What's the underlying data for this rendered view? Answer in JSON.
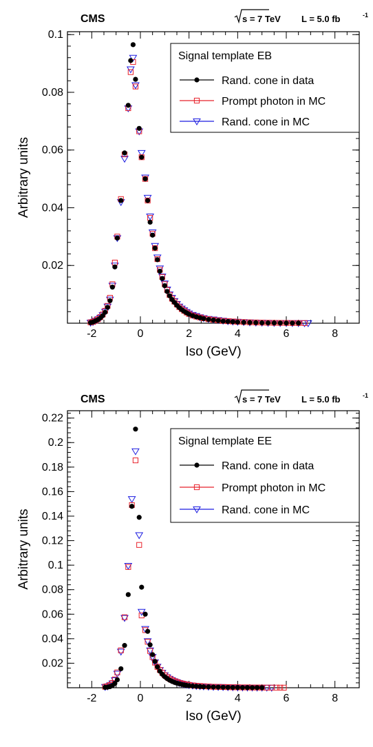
{
  "chart_data": [
    {
      "type": "scatter",
      "experiment": "CMS",
      "energy_label": "s = 7 TeV",
      "lumi_label": "L = 5.0 fb",
      "lumi_exponent": "-1",
      "xlabel": "Iso (GeV)",
      "ylabel": "Arbitrary units",
      "xlim": [
        -3,
        9
      ],
      "ylim": [
        0,
        0.101
      ],
      "x_ticks": [
        -2,
        0,
        2,
        4,
        6,
        8
      ],
      "y_ticks": [
        0.02,
        0.04,
        0.06,
        0.08,
        0.1
      ],
      "y_tick_labels": [
        "0.02",
        "0.04",
        "0.06",
        "0.08",
        "0.1"
      ],
      "legend_title": "Signal template EB",
      "legend_position": "top-right",
      "colors": {
        "data": "#000000",
        "prompt_mc": "#e8202a",
        "randcone_mc": "#1a1ae0"
      },
      "series": [
        {
          "name": "Rand. cone in data",
          "marker": "circle",
          "x": [
            -2.05,
            -1.95,
            -1.85,
            -1.75,
            -1.65,
            -1.55,
            -1.45,
            -1.35,
            -1.25,
            -1.15,
            -1.05,
            -0.95,
            -0.8,
            -0.65,
            -0.5,
            -0.4,
            -0.3,
            -0.2,
            -0.05,
            0.05,
            0.2,
            0.3,
            0.4,
            0.5,
            0.6,
            0.7,
            0.8,
            0.9,
            1.0,
            1.1,
            1.2,
            1.3,
            1.4,
            1.5,
            1.6,
            1.7,
            1.8,
            1.9,
            2.0,
            2.15,
            2.3,
            2.45,
            2.6,
            2.8,
            3.0,
            3.2,
            3.4,
            3.6,
            3.8,
            4.0,
            4.25,
            4.5,
            4.75,
            5.0,
            5.25,
            5.5,
            5.75,
            6.0,
            6.25,
            6.5
          ],
          "y": [
            0.0002,
            0.0004,
            0.0008,
            0.0012,
            0.0018,
            0.0026,
            0.0038,
            0.0055,
            0.0078,
            0.0125,
            0.0195,
            0.0295,
            0.0425,
            0.059,
            0.0755,
            0.091,
            0.0965,
            0.0845,
            0.0675,
            0.0575,
            0.05,
            0.0425,
            0.035,
            0.0305,
            0.026,
            0.022,
            0.018,
            0.0155,
            0.013,
            0.011,
            0.0095,
            0.0082,
            0.0072,
            0.0062,
            0.0054,
            0.0047,
            0.0041,
            0.0036,
            0.0031,
            0.0026,
            0.0022,
            0.0019,
            0.0016,
            0.0013,
            0.0011,
            0.0009,
            0.0007,
            0.0006,
            0.0005,
            0.0004,
            0.0003,
            0.00025,
            0.0002,
            0.00015,
            0.00012,
            0.0001,
            8e-05,
            6e-05,
            5e-05,
            4e-05
          ]
        },
        {
          "name": "Prompt photon in MC",
          "marker": "square",
          "x": [
            -2.05,
            -1.95,
            -1.85,
            -1.75,
            -1.65,
            -1.55,
            -1.45,
            -1.35,
            -1.25,
            -1.15,
            -1.05,
            -0.95,
            -0.8,
            -0.65,
            -0.5,
            -0.4,
            -0.3,
            -0.2,
            -0.05,
            0.05,
            0.2,
            0.3,
            0.4,
            0.5,
            0.6,
            0.7,
            0.8,
            0.9,
            1.0,
            1.1,
            1.2,
            1.3,
            1.4,
            1.5,
            1.6,
            1.7,
            1.8,
            1.9,
            2.0,
            2.15,
            2.3,
            2.45,
            2.6,
            2.8,
            3.0,
            3.2,
            3.4,
            3.6,
            3.8,
            4.0,
            4.25,
            4.5,
            4.75,
            5.0,
            5.25,
            5.5,
            5.75,
            6.0,
            6.25,
            6.5,
            6.75
          ],
          "y": [
            0.0003,
            0.0005,
            0.0009,
            0.0014,
            0.0021,
            0.003,
            0.0043,
            0.006,
            0.0088,
            0.0135,
            0.021,
            0.03,
            0.043,
            0.0585,
            0.0745,
            0.087,
            0.0905,
            0.082,
            0.0665,
            0.0575,
            0.05,
            0.0425,
            0.0365,
            0.031,
            0.026,
            0.0222,
            0.0185,
            0.016,
            0.0135,
            0.0115,
            0.0098,
            0.0085,
            0.0075,
            0.0065,
            0.0056,
            0.0049,
            0.0043,
            0.0037,
            0.0032,
            0.0027,
            0.0023,
            0.002,
            0.0017,
            0.0014,
            0.0012,
            0.001,
            0.0008,
            0.0007,
            0.0006,
            0.0005,
            0.0004,
            0.0003,
            0.00025,
            0.0002,
            0.00015,
            0.00012,
            0.0001,
            8e-05,
            6e-05,
            5e-05,
            4e-05
          ]
        },
        {
          "name": "Rand. cone in MC",
          "marker": "triangle-down",
          "x": [
            -2.05,
            -1.95,
            -1.85,
            -1.75,
            -1.65,
            -1.55,
            -1.45,
            -1.35,
            -1.25,
            -1.15,
            -1.05,
            -0.95,
            -0.8,
            -0.65,
            -0.5,
            -0.4,
            -0.3,
            -0.2,
            -0.05,
            0.05,
            0.2,
            0.3,
            0.4,
            0.5,
            0.6,
            0.7,
            0.8,
            0.9,
            1.0,
            1.1,
            1.2,
            1.3,
            1.4,
            1.5,
            1.6,
            1.7,
            1.8,
            1.9,
            2.0,
            2.15,
            2.3,
            2.45,
            2.6,
            2.8,
            3.0,
            3.2,
            3.4,
            3.6,
            3.8,
            4.0,
            4.25,
            4.5,
            4.75,
            5.0,
            5.25,
            5.5,
            5.75,
            6.0,
            6.25,
            6.5,
            6.75,
            6.9
          ],
          "y": [
            0.0002,
            0.0004,
            0.0008,
            0.0013,
            0.0019,
            0.0028,
            0.004,
            0.0058,
            0.0082,
            0.013,
            0.02,
            0.0295,
            0.042,
            0.057,
            0.0745,
            0.088,
            0.092,
            0.0825,
            0.0665,
            0.059,
            0.0505,
            0.0435,
            0.037,
            0.0315,
            0.0268,
            0.0228,
            0.019,
            0.0162,
            0.0138,
            0.0117,
            0.01,
            0.0088,
            0.0077,
            0.0067,
            0.0058,
            0.0051,
            0.0045,
            0.0039,
            0.0034,
            0.0029,
            0.0025,
            0.0021,
            0.0018,
            0.0015,
            0.0013,
            0.0011,
            0.0009,
            0.0007,
            0.0006,
            0.0005,
            0.0004,
            0.0003,
            0.00025,
            0.0002,
            0.00015,
            0.00012,
            0.0001,
            8e-05,
            6e-05,
            5e-05,
            4e-05,
            3e-05
          ]
        }
      ]
    },
    {
      "type": "scatter",
      "experiment": "CMS",
      "energy_label": "s = 7 TeV",
      "lumi_label": "L = 5.0 fb",
      "lumi_exponent": "-1",
      "xlabel": "Iso (GeV)",
      "ylabel": "Arbitrary units",
      "xlim": [
        -3,
        9
      ],
      "ylim": [
        0,
        0.226
      ],
      "x_ticks": [
        -2,
        0,
        2,
        4,
        6,
        8
      ],
      "y_ticks": [
        0.02,
        0.04,
        0.06,
        0.08,
        0.1,
        0.12,
        0.14,
        0.16,
        0.18,
        0.2,
        0.22
      ],
      "y_tick_labels": [
        "0.02",
        "0.04",
        "0.06",
        "0.08",
        "0.1",
        "0.12",
        "0.14",
        "0.16",
        "0.18",
        "0.2",
        "0.22"
      ],
      "legend_title": "Signal template EE",
      "legend_position": "top-right",
      "colors": {
        "data": "#000000",
        "prompt_mc": "#e8202a",
        "randcone_mc": "#1a1ae0"
      },
      "series": [
        {
          "name": "Rand. cone in data",
          "marker": "circle",
          "x": [
            -1.45,
            -1.35,
            -1.25,
            -1.15,
            -1.05,
            -0.95,
            -0.8,
            -0.65,
            -0.5,
            -0.35,
            -0.2,
            -0.05,
            0.05,
            0.2,
            0.3,
            0.4,
            0.5,
            0.6,
            0.7,
            0.8,
            0.9,
            1.0,
            1.1,
            1.2,
            1.3,
            1.4,
            1.5,
            1.6,
            1.7,
            1.8,
            1.9,
            2.0,
            2.15,
            2.3,
            2.45,
            2.6,
            2.8,
            3.0,
            3.2,
            3.4,
            3.6,
            3.8,
            4.0,
            4.2,
            4.4,
            4.6,
            4.8,
            5.0
          ],
          "y": [
            0.0003,
            0.0005,
            0.0009,
            0.0018,
            0.0035,
            0.0065,
            0.0155,
            0.0345,
            0.076,
            0.148,
            0.211,
            0.139,
            0.082,
            0.06,
            0.046,
            0.035,
            0.027,
            0.0215,
            0.017,
            0.0135,
            0.011,
            0.009,
            0.0075,
            0.0062,
            0.0052,
            0.0044,
            0.0037,
            0.0032,
            0.0027,
            0.0023,
            0.002,
            0.0017,
            0.0014,
            0.0012,
            0.001,
            0.0008,
            0.0007,
            0.0006,
            0.0005,
            0.0004,
            0.0003,
            0.00025,
            0.0002,
            0.00015,
            0.00012,
            0.0001,
            8e-05,
            6e-05
          ]
        },
        {
          "name": "Prompt photon in MC",
          "marker": "square",
          "x": [
            -1.45,
            -1.35,
            -1.25,
            -1.15,
            -1.05,
            -0.95,
            -0.8,
            -0.65,
            -0.5,
            -0.35,
            -0.2,
            -0.05,
            0.05,
            0.2,
            0.3,
            0.4,
            0.5,
            0.6,
            0.7,
            0.8,
            0.9,
            1.0,
            1.1,
            1.2,
            1.3,
            1.4,
            1.5,
            1.6,
            1.7,
            1.8,
            1.9,
            2.0,
            2.15,
            2.3,
            2.45,
            2.6,
            2.8,
            3.0,
            3.2,
            3.4,
            3.6,
            3.8,
            4.0,
            4.2,
            4.4,
            4.6,
            4.8,
            5.0,
            5.2,
            5.4,
            5.6,
            5.75,
            5.9
          ],
          "y": [
            0.0008,
            0.0012,
            0.0022,
            0.0038,
            0.0068,
            0.0125,
            0.0305,
            0.0575,
            0.0985,
            0.149,
            0.1855,
            0.1165,
            0.059,
            0.047,
            0.0375,
            0.03,
            0.025,
            0.0205,
            0.017,
            0.0145,
            0.0122,
            0.0102,
            0.0087,
            0.0074,
            0.0063,
            0.0054,
            0.0047,
            0.004,
            0.0035,
            0.003,
            0.0026,
            0.0023,
            0.0019,
            0.0016,
            0.0014,
            0.0012,
            0.001,
            0.0008,
            0.0007,
            0.0006,
            0.0005,
            0.0004,
            0.0004,
            0.0003,
            0.0003,
            0.0002,
            0.0002,
            0.00015,
            0.0001,
            0.0001,
            0.0001,
            8e-05,
            6e-05
          ]
        },
        {
          "name": "Rand. cone in MC",
          "marker": "triangle-down",
          "x": [
            -1.45,
            -1.35,
            -1.25,
            -1.15,
            -1.05,
            -0.95,
            -0.8,
            -0.65,
            -0.5,
            -0.35,
            -0.2,
            -0.05,
            0.05,
            0.2,
            0.3,
            0.4,
            0.5,
            0.6,
            0.7,
            0.8,
            0.9,
            1.0,
            1.1,
            1.2,
            1.3,
            1.4,
            1.5,
            1.6,
            1.7,
            1.8,
            1.9,
            2.0,
            2.15,
            2.3,
            2.45,
            2.6,
            2.8,
            3.0,
            3.2,
            3.4,
            3.6,
            3.8,
            4.0,
            4.2,
            4.4,
            4.6,
            4.8,
            5.0,
            5.2,
            5.4
          ],
          "y": [
            0.0007,
            0.0011,
            0.002,
            0.0035,
            0.0062,
            0.0115,
            0.0295,
            0.057,
            0.0995,
            0.154,
            0.193,
            0.1245,
            0.062,
            0.048,
            0.038,
            0.0305,
            0.0252,
            0.0208,
            0.0172,
            0.0145,
            0.0122,
            0.0102,
            0.0086,
            0.0073,
            0.0062,
            0.0053,
            0.0046,
            0.0039,
            0.0034,
            0.0029,
            0.0025,
            0.0022,
            0.0018,
            0.0015,
            0.0013,
            0.0011,
            0.0009,
            0.0008,
            0.0007,
            0.0006,
            0.0005,
            0.0004,
            0.0003,
            0.0003,
            0.0002,
            0.0002,
            0.00015,
            0.0001,
            0.0001,
            8e-05
          ]
        }
      ]
    }
  ]
}
